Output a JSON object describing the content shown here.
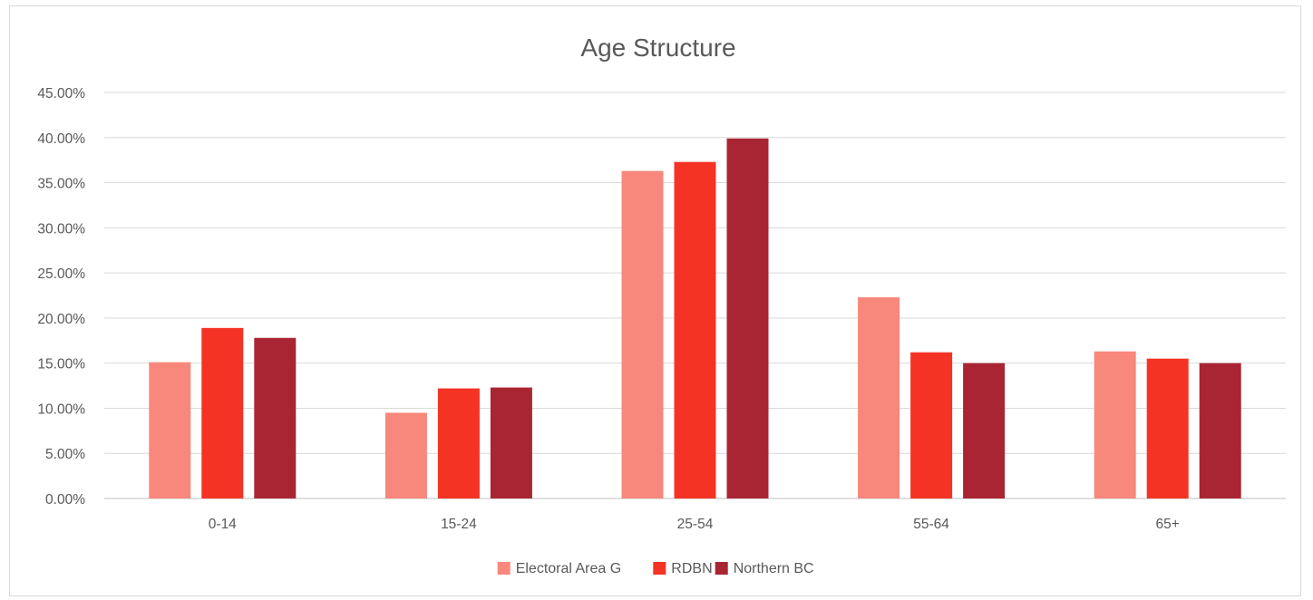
{
  "chart_data": {
    "type": "bar",
    "title": "Age Structure",
    "categories": [
      "0-14",
      "15-24",
      "25-54",
      "55-64",
      "65+"
    ],
    "series": [
      {
        "name": "Electoral Area G",
        "color": "#f8877c",
        "values": [
          15.1,
          9.5,
          36.3,
          22.3,
          16.3
        ]
      },
      {
        "name": "RDBN",
        "color": "#f43325",
        "values": [
          18.9,
          12.2,
          37.3,
          16.2,
          15.5
        ]
      },
      {
        "name": "Northern BC",
        "color": "#a92533",
        "values": [
          17.8,
          12.3,
          39.9,
          15.0,
          15.0
        ]
      }
    ],
    "ylim": [
      0,
      45
    ],
    "ytick_step": 5,
    "ytick_labels": [
      "0.00%",
      "5.00%",
      "10.00%",
      "15.00%",
      "20.00%",
      "25.00%",
      "30.00%",
      "35.00%",
      "40.00%",
      "45.00%"
    ],
    "grid": true,
    "legend_position": "bottom"
  }
}
